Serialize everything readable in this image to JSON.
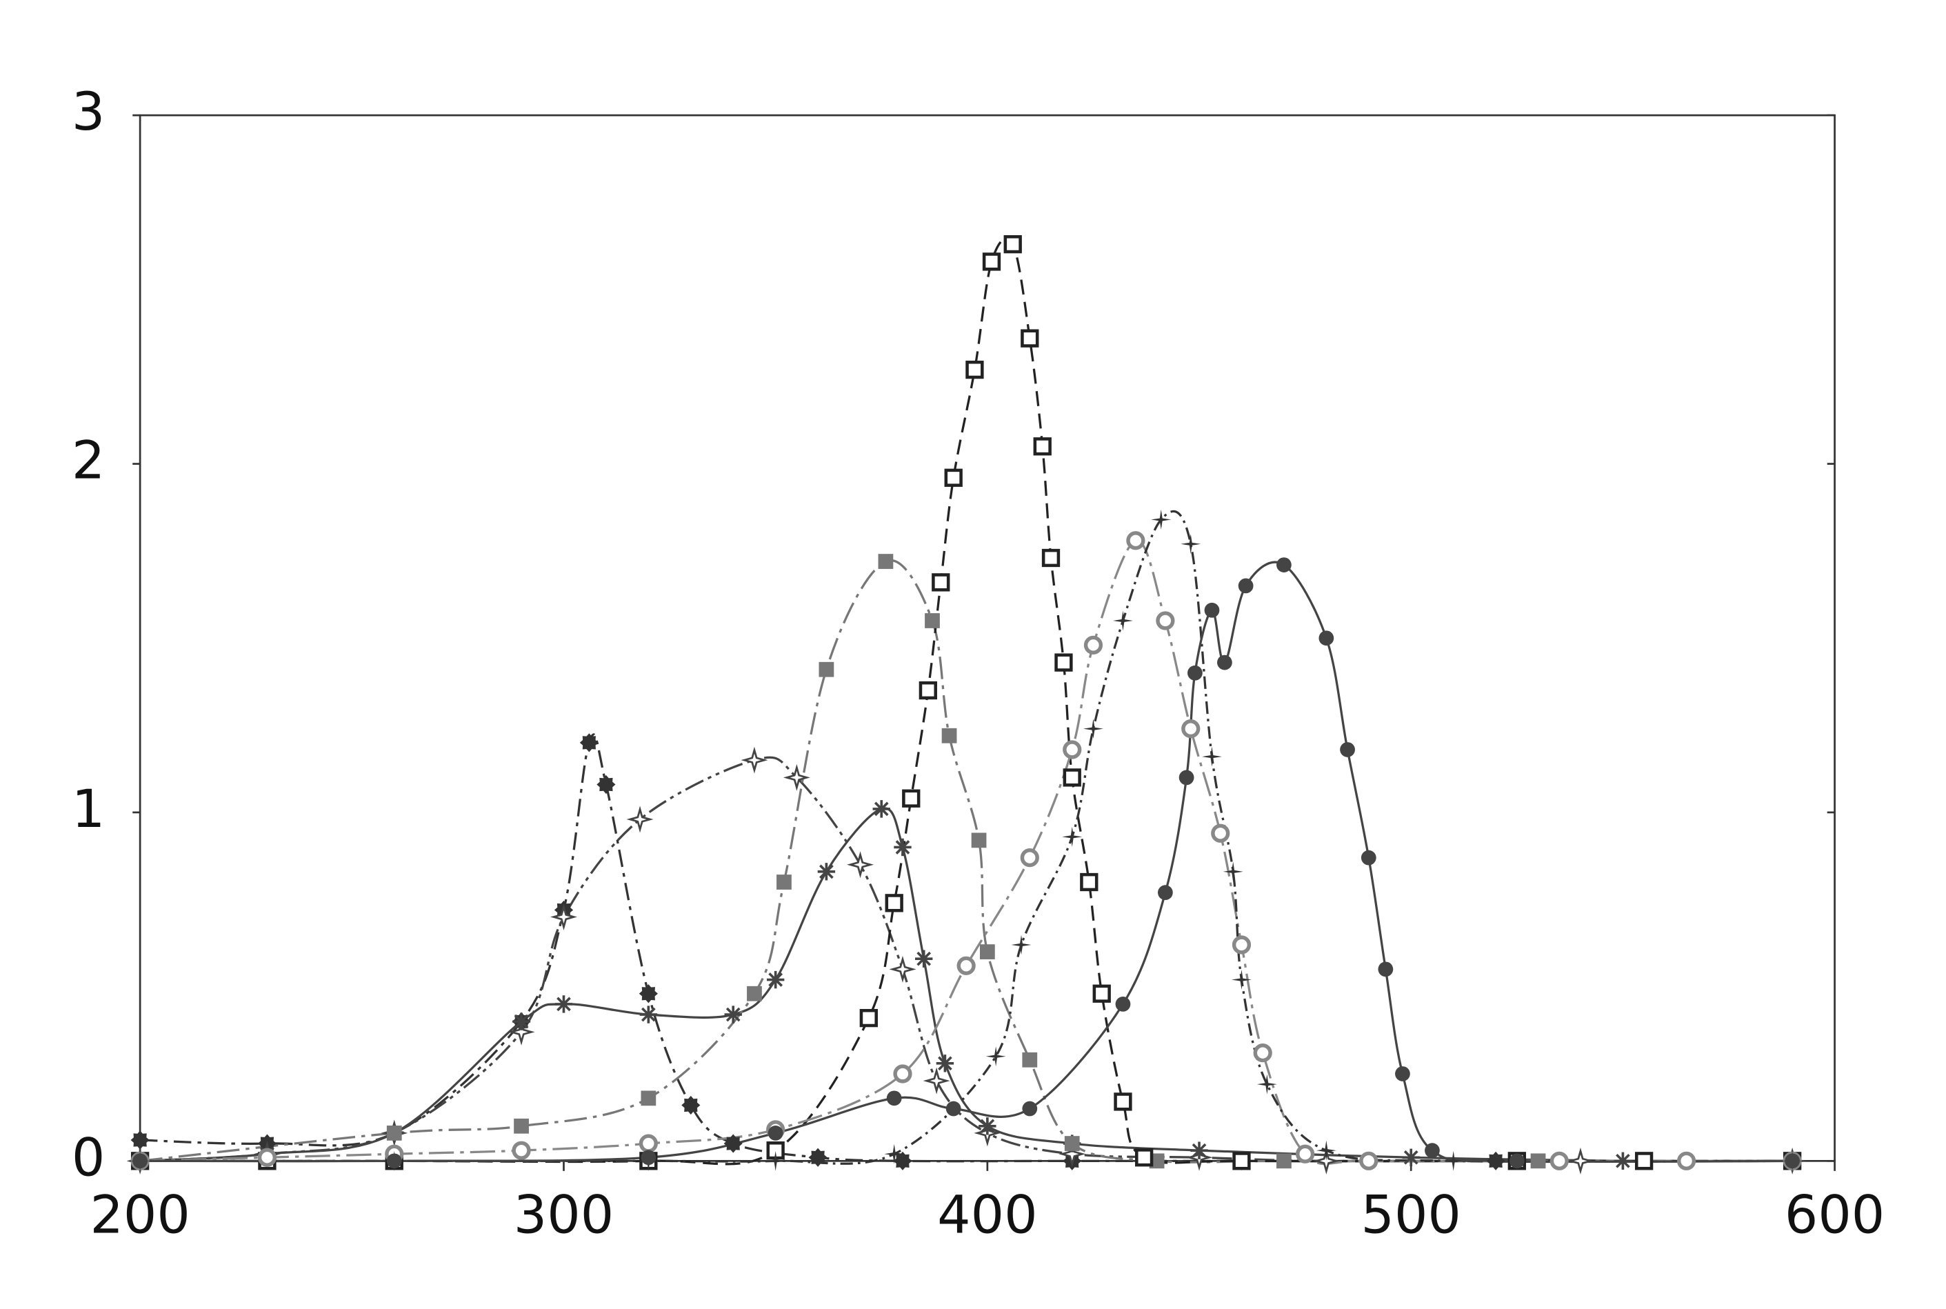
{
  "chart_data": {
    "type": "line",
    "xlim": [
      200,
      600
    ],
    "ylim": [
      0,
      3
    ],
    "xticks": [
      200,
      300,
      400,
      500,
      600
    ],
    "yticks": [
      0,
      1,
      2,
      3
    ],
    "grid": false,
    "series": [
      {
        "color": "#333333",
        "marker": "filled-circle",
        "dash": "14 5 3 5",
        "x": [
          200,
          230,
          260,
          290,
          300,
          306,
          310,
          320,
          330,
          340,
          360,
          380,
          420,
          460,
          520,
          590
        ],
        "values": [
          0.06,
          0.05,
          0.08,
          0.4,
          0.72,
          1.2,
          1.08,
          0.48,
          0.16,
          0.05,
          0.01,
          0.0,
          0.0,
          0.0,
          0.0,
          0.0
        ]
      },
      {
        "color": "#444444",
        "marker": "star",
        "dash": "16 4 3 4 3 4",
        "x": [
          200,
          230,
          260,
          290,
          300,
          318,
          345,
          355,
          370,
          380,
          388,
          400,
          420,
          450,
          480,
          540,
          590
        ],
        "values": [
          0.0,
          0.02,
          0.08,
          0.37,
          0.7,
          0.98,
          1.15,
          1.1,
          0.85,
          0.55,
          0.23,
          0.08,
          0.02,
          0.01,
          0.0,
          0.0,
          0.0
        ]
      },
      {
        "color": "#444444",
        "marker": "asterisk",
        "dash": "",
        "x": [
          200,
          230,
          260,
          290,
          300,
          320,
          340,
          350,
          362,
          375,
          380,
          385,
          390,
          400,
          420,
          450,
          500,
          550,
          590
        ],
        "values": [
          0.0,
          0.02,
          0.08,
          0.4,
          0.45,
          0.42,
          0.42,
          0.52,
          0.83,
          1.01,
          0.9,
          0.58,
          0.28,
          0.1,
          0.05,
          0.03,
          0.01,
          0.0,
          0.0
        ]
      },
      {
        "color": "#777777",
        "marker": "filled-square",
        "dash": "18 5 3 5",
        "x": [
          200,
          260,
          290,
          320,
          345,
          352,
          362,
          376,
          387,
          391,
          398,
          400,
          410,
          420,
          440,
          470,
          530,
          590
        ],
        "values": [
          0.0,
          0.08,
          0.1,
          0.18,
          0.48,
          0.8,
          1.41,
          1.72,
          1.55,
          1.22,
          0.92,
          0.6,
          0.29,
          0.05,
          0.0,
          0.0,
          0.0,
          0.0
        ]
      },
      {
        "color": "#222222",
        "marker": "open-square",
        "dash": "12 6",
        "x": [
          200,
          230,
          260,
          320,
          350,
          372,
          378,
          382,
          386,
          389,
          392,
          397,
          401,
          406,
          410,
          413,
          415,
          418,
          420,
          424,
          427,
          432,
          437,
          460,
          525,
          555,
          590
        ],
        "values": [
          0.0,
          0.0,
          0.0,
          0.0,
          0.03,
          0.41,
          0.74,
          1.04,
          1.35,
          1.66,
          1.96,
          2.27,
          2.58,
          2.63,
          2.36,
          2.05,
          1.73,
          1.43,
          1.1,
          0.8,
          0.48,
          0.17,
          0.01,
          0.0,
          0.0,
          0.0,
          0.0
        ]
      },
      {
        "color": "#888888",
        "marker": "open-circle",
        "dash": "20 5 3 5",
        "x": [
          200,
          230,
          260,
          290,
          320,
          350,
          380,
          395,
          410,
          420,
          425,
          435,
          442,
          448,
          455,
          460,
          465,
          475,
          490,
          535,
          565,
          590
        ],
        "values": [
          0.0,
          0.01,
          0.02,
          0.03,
          0.05,
          0.09,
          0.25,
          0.56,
          0.87,
          1.18,
          1.48,
          1.78,
          1.55,
          1.24,
          0.94,
          0.62,
          0.31,
          0.02,
          0.0,
          0.0,
          0.0,
          0.0
        ]
      },
      {
        "color": "#333333",
        "marker": "plus",
        "dash": "10 4 2 4",
        "x": [
          200,
          260,
          320,
          350,
          378,
          402,
          408,
          420,
          425,
          432,
          441,
          448,
          453,
          458,
          460,
          466,
          480,
          510,
          590
        ],
        "values": [
          0.0,
          0.0,
          0.0,
          0.0,
          0.02,
          0.3,
          0.62,
          0.93,
          1.24,
          1.55,
          1.84,
          1.77,
          1.16,
          0.83,
          0.52,
          0.22,
          0.03,
          0.0,
          0.0
        ]
      },
      {
        "color": "#444444",
        "marker": "filled-dot",
        "dash": "",
        "x": [
          200,
          260,
          320,
          350,
          378,
          392,
          410,
          432,
          442,
          447,
          449,
          453,
          456,
          461,
          470,
          480,
          485,
          490,
          494,
          498,
          505,
          525,
          590
        ],
        "values": [
          0.0,
          0.0,
          0.01,
          0.08,
          0.18,
          0.15,
          0.15,
          0.45,
          0.77,
          1.1,
          1.4,
          1.58,
          1.43,
          1.65,
          1.71,
          1.5,
          1.18,
          0.87,
          0.55,
          0.25,
          0.03,
          0.0,
          0.0
        ]
      }
    ]
  }
}
